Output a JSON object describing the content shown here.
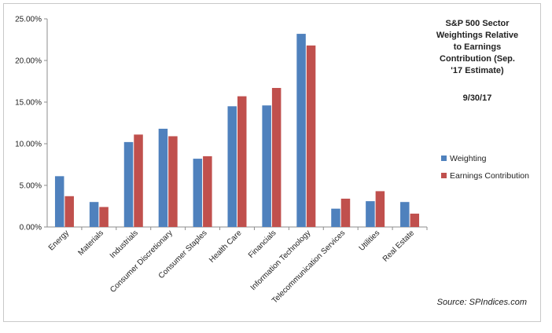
{
  "chart_data": {
    "type": "bar",
    "title_lines": [
      "S&P 500 Sector",
      "Weightings Relative",
      "to Earnings",
      "Contribution (Sep.",
      "'17 Estimate)"
    ],
    "date": "9/30/17",
    "categories": [
      "Energy",
      "Materials",
      "Industrials",
      "Consumer Discretionary",
      "Consumer Staples",
      "Health Care",
      "Financials",
      "Information Technology",
      "Telecommunication Services",
      "Utilities",
      "Real Estate"
    ],
    "series": [
      {
        "name": "Weighting",
        "color": "#4f81bd",
        "values": [
          6.1,
          3.0,
          10.2,
          11.8,
          8.2,
          14.5,
          14.6,
          23.2,
          2.2,
          3.1,
          3.0
        ]
      },
      {
        "name": "Earnings Contribution",
        "color": "#c0504d",
        "values": [
          3.7,
          2.4,
          11.1,
          10.9,
          8.5,
          15.7,
          16.7,
          21.8,
          3.4,
          4.3,
          1.6
        ]
      }
    ],
    "ylim": [
      0,
      25
    ],
    "yticks": [
      "0.00%",
      "5.00%",
      "10.00%",
      "15.00%",
      "20.00%",
      "25.00%"
    ],
    "ytick_values": [
      0,
      5,
      10,
      15,
      20,
      25
    ],
    "legend_position": "right",
    "grid": false,
    "source": "Source: SPIndices.com"
  }
}
